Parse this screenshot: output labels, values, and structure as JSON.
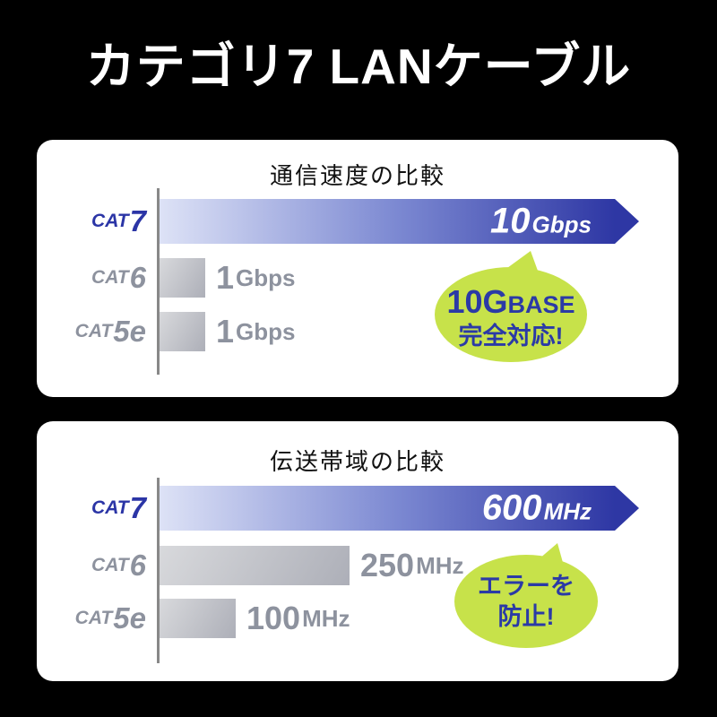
{
  "page": {
    "title": "カテゴリ7 LANケーブル"
  },
  "colors": {
    "page_bg": "#000000",
    "card_bg": "#ffffff",
    "bar_blue_start": "#dde2f6",
    "bar_blue_mid": "#7c89d2",
    "bar_blue_end": "#2e37a4",
    "bar_gray_start": "#d8d9dc",
    "bar_gray_end": "#adafb8",
    "label_blue": "#2b35a6",
    "label_gray": "#8d929e",
    "axis_gray": "#888888",
    "bubble_green": "#c7e24a",
    "bubble_text_blue": "#2b3aa6",
    "title_black": "#111111",
    "header_white": "#ffffff"
  },
  "chart_data": [
    {
      "type": "bar",
      "orientation": "horizontal",
      "title": "通信速度の比較",
      "categories": [
        "CAT7",
        "CAT6",
        "CAT5e"
      ],
      "values": [
        10,
        1,
        1
      ],
      "unit": "Gbps",
      "value_labels": [
        "10Gbps",
        "1Gbps",
        "1Gbps"
      ],
      "highlight_category": "CAT7",
      "annotation": "10GBASE完全対応!",
      "xlabel": "",
      "ylabel": "",
      "xlim": [
        0,
        10
      ],
      "grid": false,
      "legend": false
    },
    {
      "type": "bar",
      "orientation": "horizontal",
      "title": "伝送帯域の比較",
      "categories": [
        "CAT7",
        "CAT6",
        "CAT5e"
      ],
      "values": [
        600,
        250,
        100
      ],
      "unit": "MHz",
      "value_labels": [
        "600MHz",
        "250MHz",
        "100MHz"
      ],
      "highlight_category": "CAT7",
      "annotation": "エラーを防止!",
      "xlabel": "",
      "ylabel": "",
      "xlim": [
        0,
        600
      ],
      "grid": false,
      "legend": false
    }
  ],
  "charts": [
    {
      "title": "通信速度の比較",
      "rows": [
        {
          "label_prefix": "CAT",
          "label_num": "7",
          "value_num": "10",
          "value_unit": "Gbps"
        },
        {
          "label_prefix": "CAT",
          "label_num": "6",
          "value_num": "1",
          "value_unit": "Gbps"
        },
        {
          "label_prefix": "CAT",
          "label_num": "5e",
          "value_num": "1",
          "value_unit": "Gbps"
        }
      ],
      "bubble": {
        "line1_big": "10G",
        "line1_small": "BASE",
        "line2": "完全対応!"
      }
    },
    {
      "title": "伝送帯域の比較",
      "rows": [
        {
          "label_prefix": "CAT",
          "label_num": "7",
          "value_num": "600",
          "value_unit": "MHz"
        },
        {
          "label_prefix": "CAT",
          "label_num": "6",
          "value_num": "250",
          "value_unit": "MHz"
        },
        {
          "label_prefix": "CAT",
          "label_num": "5e",
          "value_num": "100",
          "value_unit": "MHz"
        }
      ],
      "bubble": {
        "line1_big": "エラーを",
        "line1_small": "",
        "line2": "防止!"
      }
    }
  ]
}
